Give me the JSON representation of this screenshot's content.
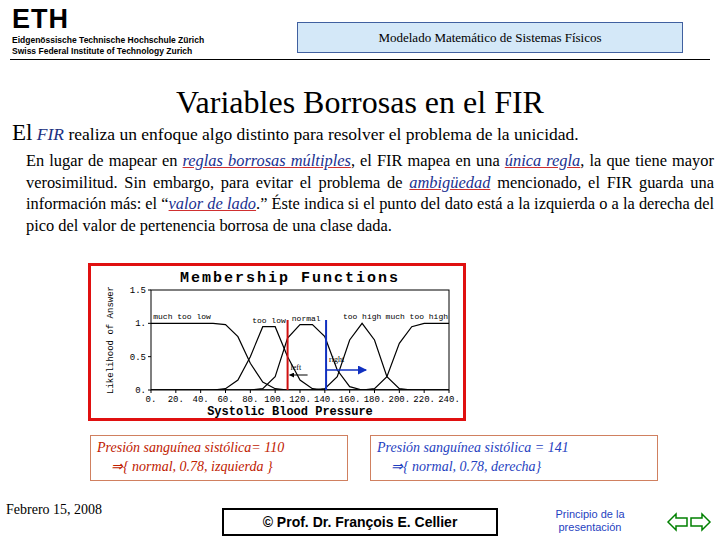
{
  "header": {
    "logo": "ETH",
    "institution": [
      "Eidgenössische Technische Hochschule Zürich",
      "Swiss Federal Institute of Technology Zurich"
    ],
    "course": "Modelado Matemático de Sistemas Físicos"
  },
  "title": "Variables Borrosas en el FIR",
  "intro": {
    "lead": "El",
    "em": "FIR",
    "rest": " realiza un enfoque algo distinto para resolver el problema de la unicidad."
  },
  "body": [
    "En lugar de mapear en ",
    "reglas borrosas múltiples",
    ", el FIR mapea en una ",
    "única regla",
    ", la que tiene mayor verosimilitud.  Sin embargo, para evitar el problema de ",
    "ambigüedad",
    " mencionado, el FIR guarda una información más: el “",
    "valor de lado",
    ".” Éste indica si el punto del dato está a la izquierda o a la derecha del pico del valor de pertenencia borrosa de una clase dada."
  ],
  "chart_data": {
    "type": "line",
    "title": "Membership Functions",
    "x_label": "Systolic Blood Pressure",
    "y_label": "Likelihood of Answer",
    "x": [
      0,
      10,
      20,
      30,
      40,
      50,
      60,
      70,
      80,
      90,
      100,
      110,
      120,
      130,
      140,
      150,
      160,
      170,
      180,
      190,
      200,
      210,
      220,
      230,
      240
    ],
    "series": [
      {
        "name": "much too low",
        "color": "#000000",
        "values": [
          1,
          1,
          1,
          1,
          1,
          1,
          0.98,
          0.8,
          0.4,
          0.12,
          0.02,
          0,
          0,
          0,
          0,
          0,
          0,
          0,
          0,
          0,
          0,
          0,
          0,
          0,
          0
        ]
      },
      {
        "name": "too low",
        "color": "#000000",
        "values": [
          0,
          0,
          0,
          0,
          0,
          0,
          0.02,
          0.15,
          0.5,
          0.95,
          0.95,
          0.5,
          0.15,
          0.02,
          0,
          0,
          0,
          0,
          0,
          0,
          0,
          0,
          0,
          0,
          0
        ]
      },
      {
        "name": "normal",
        "color": "#000000",
        "values": [
          0,
          0,
          0,
          0,
          0,
          0,
          0,
          0,
          0,
          0.02,
          0.2,
          0.78,
          0.98,
          0.98,
          0.8,
          0.3,
          0.05,
          0,
          0,
          0,
          0,
          0,
          0,
          0,
          0
        ]
      },
      {
        "name": "too high",
        "color": "#000000",
        "values": [
          0,
          0,
          0,
          0,
          0,
          0,
          0,
          0,
          0,
          0,
          0,
          0,
          0,
          0,
          0.02,
          0.2,
          0.75,
          1,
          0.75,
          0.2,
          0.02,
          0,
          0,
          0,
          0
        ]
      },
      {
        "name": "much too high",
        "color": "#000000",
        "values": [
          0,
          0,
          0,
          0,
          0,
          0,
          0,
          0,
          0,
          0,
          0,
          0,
          0,
          0,
          0,
          0,
          0,
          0,
          0.02,
          0.2,
          0.7,
          0.95,
          1,
          1,
          1
        ]
      }
    ],
    "xlim": [
      0,
      240
    ],
    "xticks": [
      {
        "value": 0,
        "label": "0."
      },
      {
        "value": 20,
        "label": "20."
      },
      {
        "value": 40,
        "label": "40."
      },
      {
        "value": 60,
        "label": "60."
      },
      {
        "value": 80,
        "label": "80."
      },
      {
        "value": 100,
        "label": "100."
      },
      {
        "value": 120,
        "label": "120."
      },
      {
        "value": 140,
        "label": "140."
      },
      {
        "value": 160,
        "label": "160."
      },
      {
        "value": 180,
        "label": "180."
      },
      {
        "value": 200,
        "label": "200."
      },
      {
        "value": 220,
        "label": "220."
      },
      {
        "value": 240,
        "label": "240."
      }
    ],
    "ylim": [
      0,
      1.5
    ],
    "yticks": [
      {
        "value": 0,
        "label": "0."
      },
      0.5,
      {
        "value": 1,
        "label": "1."
      },
      1.5
    ],
    "grid": false,
    "annotations": [
      {
        "x": 110,
        "label": "left",
        "color": "#d01010"
      },
      {
        "x": 141,
        "label": "right",
        "color": "#1030c0"
      }
    ]
  },
  "captions": [
    {
      "lines": [
        "Presión sanguínea sistólica= 110",
        "⇒{ normal, 0.78, izquierda }"
      ],
      "color": "#c02000"
    },
    {
      "lines": [
        "Presión sanguínea sistólica = 141",
        "⇒{ normal, 0.78, derecha}"
      ],
      "color": "#1f3fbf"
    }
  ],
  "footer": {
    "date": "Febrero 15, 2008",
    "author": "© Prof. Dr. François E. Cellier",
    "nav": "Principio de la presentación"
  }
}
